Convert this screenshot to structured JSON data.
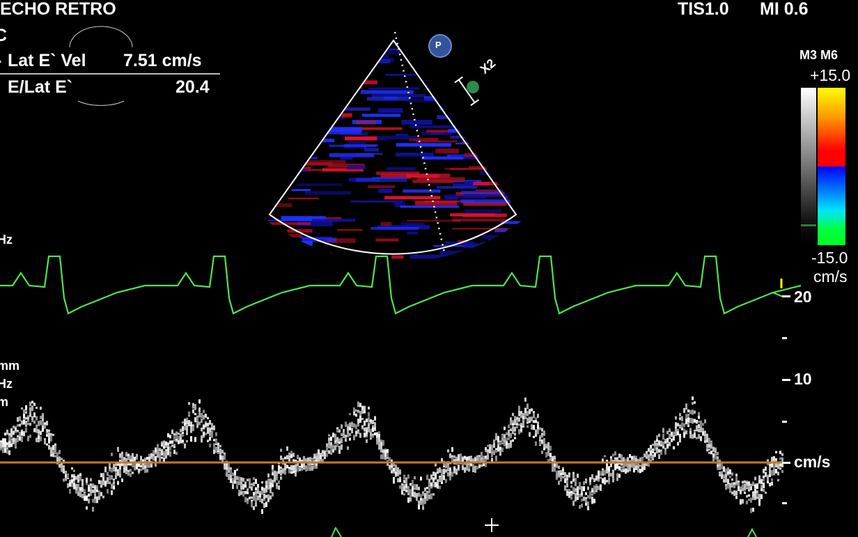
{
  "header": {
    "title": "ECHO RETRO",
    "tis": "TIS1.0",
    "mi": "MI 0.6"
  },
  "measurements": {
    "left_fragment": "C",
    "rows": [
      {
        "label": "Lat E` Vel",
        "value": "7.51 cm/s"
      },
      {
        "label": "E/Lat E`",
        "value": "20.4"
      }
    ]
  },
  "left_labels": {
    "hz1": "Hz",
    "mm": "mm",
    "hz2": "Hz",
    "m": "m"
  },
  "color_map": {
    "name": "M3 M6",
    "max": "+15.0",
    "min": "-15.0",
    "unit": "cm/s",
    "colors": {
      "positive": [
        "#ffff00",
        "#ff8000",
        "#ff0000"
      ],
      "negative": [
        "#0000ff",
        "#00e5ff",
        "#00ff20"
      ]
    }
  },
  "probe_marker": {
    "label": "P"
  },
  "zoom_label": "X2",
  "velocity_scale": {
    "ticks": [
      "20",
      "10"
    ],
    "unit": "cm/s"
  },
  "colors": {
    "ecg": "#4ce64c",
    "baseline": "#c87828",
    "sector_outline": "#ffffff"
  }
}
